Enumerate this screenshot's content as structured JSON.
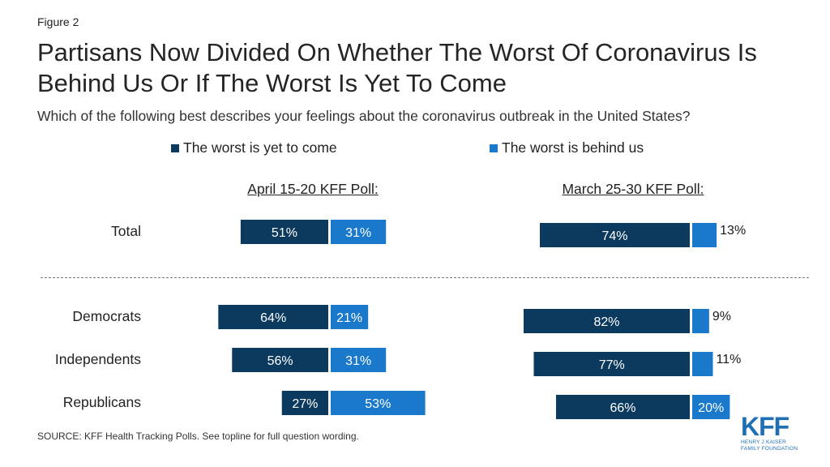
{
  "figure_label": "Figure 2",
  "title": "Partisans Now Divided On Whether The Worst Of Coronavirus Is Behind Us Or If The Worst Is Yet To Come",
  "subtitle": "Which of the following best describes your feelings about the coronavirus outbreak in the United States?",
  "source": "SOURCE: KFF Health Tracking Polls. See topline for full question wording.",
  "logo": {
    "text": "KFF",
    "line1": "HENRY J KAISER",
    "line2": "FAMILY FOUNDATION"
  },
  "colors": {
    "yet_to_come": "#0c3a5e",
    "behind_us": "#1b79cc",
    "separator": "#7a7a7a"
  },
  "chart_data": {
    "type": "bar",
    "orientation": "horizontal-diverging",
    "legend": [
      "The worst is yet to come",
      "The worst is behind us"
    ],
    "legend_placement": "top",
    "categories": [
      "Total",
      "Democrats",
      "Independents",
      "Republicans"
    ],
    "panels": [
      {
        "title": "April 15-20 KFF Poll:",
        "series": [
          {
            "name": "The worst is yet to come",
            "values": [
              51,
              64,
              56,
              27
            ],
            "labels": [
              "51%",
              "64%",
              "56%",
              "27%"
            ]
          },
          {
            "name": "The worst is behind us",
            "values": [
              31,
              21,
              31,
              53
            ],
            "labels": [
              "31%",
              "21%",
              "31%",
              "53%"
            ]
          }
        ]
      },
      {
        "title": "March 25-30 KFF Poll:",
        "series": [
          {
            "name": "The worst is yet to come",
            "values": [
              74,
              82,
              77,
              66
            ],
            "labels": [
              "74%",
              "82%",
              "77%",
              "66%"
            ]
          },
          {
            "name": "The worst is behind us",
            "values": [
              13,
              9,
              11,
              20
            ],
            "labels": [
              "13%",
              "9%",
              "11%",
              "20%"
            ]
          }
        ]
      }
    ]
  }
}
